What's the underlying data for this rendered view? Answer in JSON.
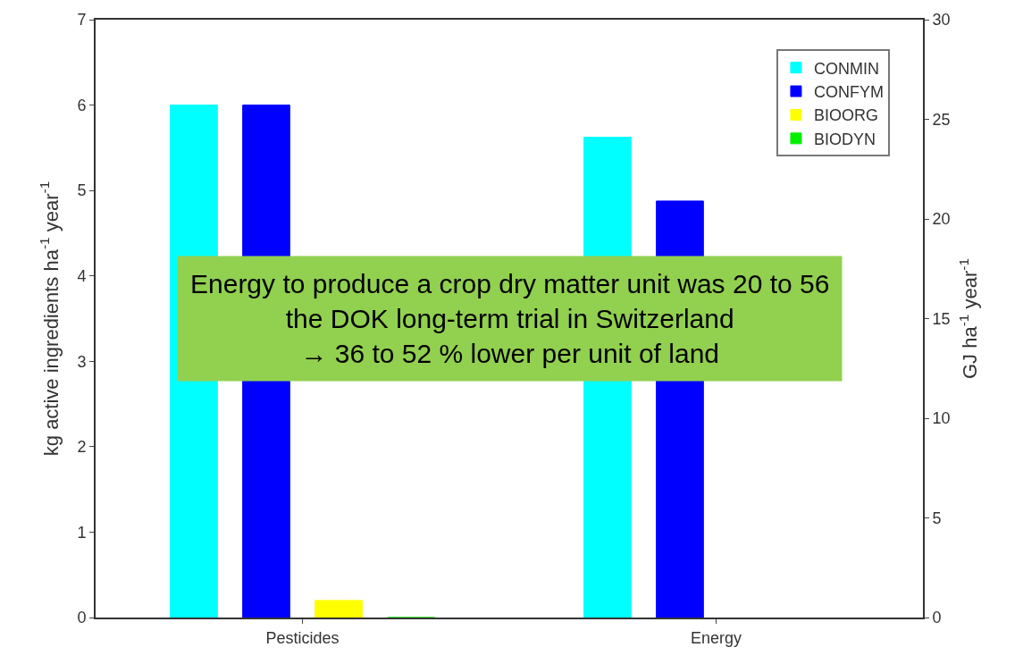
{
  "chart_data": {
    "type": "bar",
    "categories": [
      "Pesticides",
      "Energy"
    ],
    "ylabel": "kg active ingredients ha$^{-1}$ year$^{-1}$",
    "y2label": "GJ ha$^{-1}$ year$^{-1}$",
    "ylim": [
      0,
      7
    ],
    "yticks": [
      0,
      1,
      2,
      3,
      4,
      5,
      6,
      7
    ],
    "y2lim": [
      0,
      30
    ],
    "y2ticks": [
      0,
      5,
      10,
      15,
      20,
      25,
      30
    ],
    "series": [
      {
        "name": "CONMIN",
        "color": "#00ffff",
        "values": [
          6,
          null
        ]
      },
      {
        "name": "CONFYM",
        "color": "#0000ff",
        "values": [
          6,
          null
        ]
      },
      {
        "name": "BIOORG",
        "color": "#ffff00",
        "values": [
          0.2,
          null
        ]
      },
      {
        "name": "BIODYN",
        "color": "#00ee00",
        "values": [
          0,
          null
        ]
      },
      {
        "color": "#00ffff",
        "values": [
          null,
          24.1
        ],
        "axis": "y2"
      },
      {
        "color": "#0000ff",
        "values": [
          null,
          20.9
        ],
        "axis": "y2"
      },
      {
        "color": "#ffff00",
        "values": [
          null,
          null
        ],
        "axis": "y2"
      },
      {
        "color": "#00ee00",
        "values": [
          null,
          null
        ],
        "axis": "y2"
      }
    ],
    "legend": "top right",
    "annotations": [
      "Energy to produce a crop dry matter unit was 20 to 56\nthe DOK long-term trial in Switzerland\n→ 36 to 52 % lower per unit of land"
    ]
  }
}
